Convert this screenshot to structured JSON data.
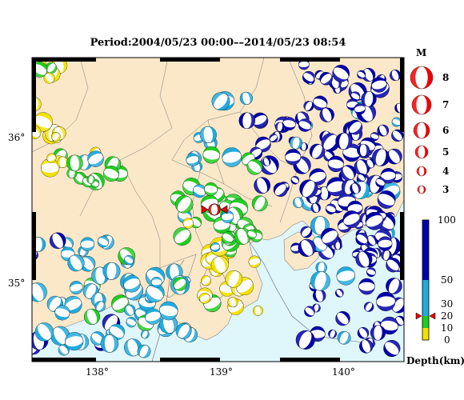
{
  "title": "Period:2004/05/23 00:00––2014/05/23 08:54",
  "axes": {
    "lat_labels": [
      "36°",
      "35°"
    ],
    "lon_labels": [
      "138°",
      "139°",
      "140°"
    ]
  },
  "magnitude_legend": {
    "title": "M",
    "items": [
      "8",
      "7",
      "6",
      "5",
      "4",
      "3"
    ]
  },
  "depth_scale": {
    "title": "Depth(km)",
    "ticks": [
      "100",
      "50",
      "30",
      "20",
      "10",
      "0"
    ],
    "bands": [
      {
        "from": 0,
        "to": 10,
        "color": "#f2e200"
      },
      {
        "from": 10,
        "to": 20,
        "color": "#22cc22"
      },
      {
        "from": 20,
        "to": 50,
        "color": "#22aadd"
      },
      {
        "from": 50,
        "to": 100,
        "color": "#0000aa"
      }
    ],
    "marker_depth": 20
  },
  "colors": {
    "land": "#fbe8c9",
    "sea": "#dff6fb",
    "highlight": "#ee0000"
  }
}
